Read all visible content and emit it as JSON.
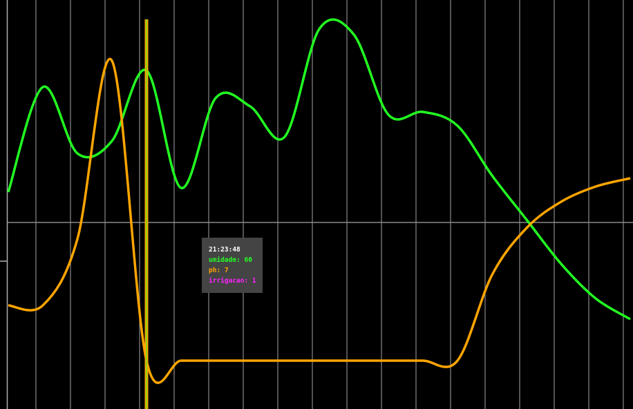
{
  "chart_data": {
    "type": "line",
    "grid": true,
    "tooltip": {
      "time": "21:23:48",
      "items": [
        {
          "label": "umidade: 60",
          "color": "#22ff22"
        },
        {
          "label": "ph: 7",
          "color": "#ffa500"
        },
        {
          "label": "irrigacao: 1",
          "color": "#ff22ff"
        }
      ]
    },
    "series": [
      {
        "key": "umidade",
        "color": "#22ff22",
        "x": [
          0,
          1,
          2,
          3,
          4,
          5,
          6,
          7,
          8,
          9,
          10,
          11,
          12,
          13,
          14,
          15,
          16,
          17,
          18
        ],
        "values": [
          22,
          98,
          50,
          59,
          110,
          25,
          90,
          84,
          62,
          140,
          136,
          78,
          80,
          70,
          34,
          2,
          -30,
          -55,
          -70
        ]
      },
      {
        "key": "ph",
        "color": "#ffa500",
        "x": [
          0,
          1,
          2,
          3,
          4,
          5,
          6,
          7,
          8,
          9,
          10,
          11,
          12,
          13,
          14,
          15,
          16,
          17,
          18
        ],
        "values": [
          -60,
          -60,
          -12,
          117,
          -100,
          -100,
          -100,
          -100,
          -100,
          -100,
          -100,
          -100,
          -100,
          -100,
          -38,
          -4,
          15,
          26,
          32
        ]
      }
    ],
    "highlight_x": 4
  }
}
